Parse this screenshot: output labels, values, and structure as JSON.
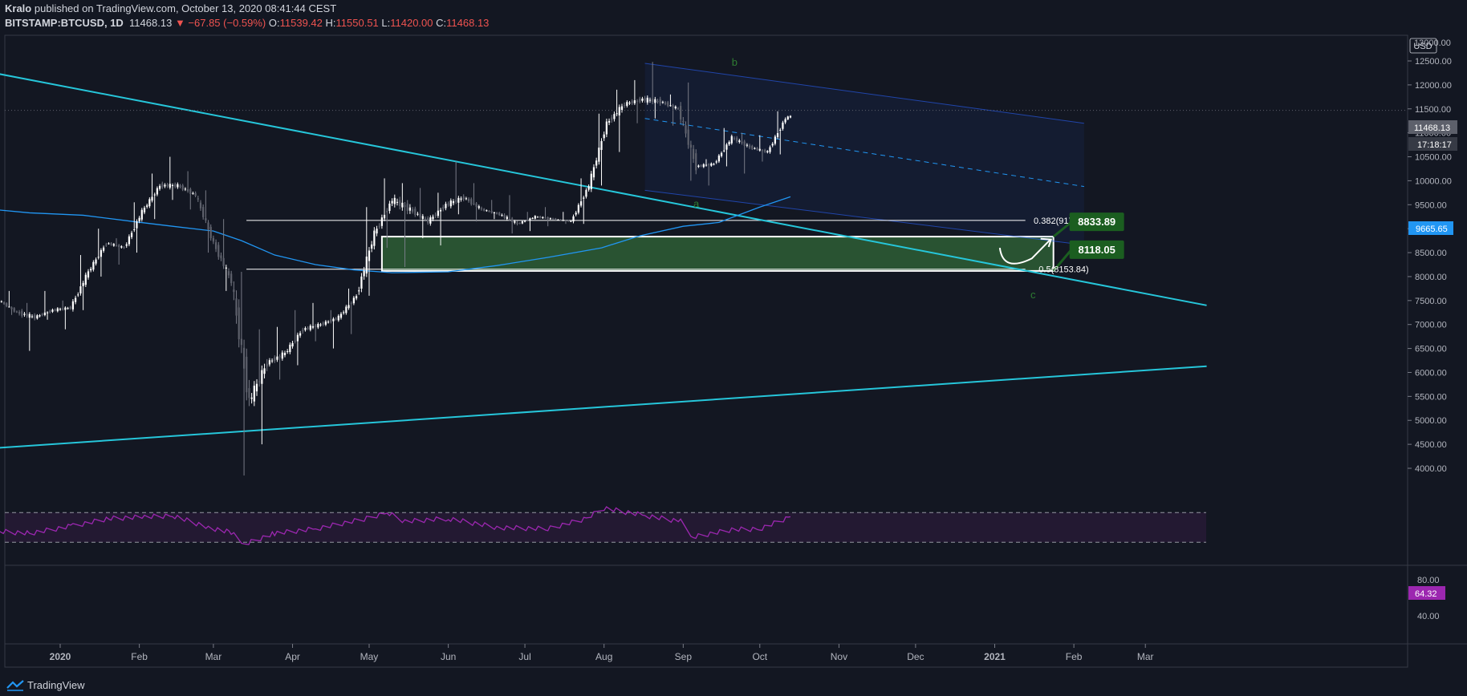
{
  "header": {
    "author": "Kralo",
    "published": "published on TradingView.com, October 13, 2020 08:41:44 CEST"
  },
  "symbol": {
    "name": "BITSTAMP:BTCUSD, 1D",
    "last": "11468.13",
    "change": "▼ −67.85 (−0.59%)",
    "o_label": "O:",
    "o": "11539.42",
    "h_label": "H:",
    "h": "11550.51",
    "l_label": "L:",
    "l": "11420.00",
    "c_label": "C:",
    "c": "11468.13"
  },
  "price_axis": {
    "currency": "USD",
    "ticks": [
      "12500.00",
      "12000.00",
      "11500.00",
      "11000.00",
      "10500.00",
      "10000.00",
      "9500.00",
      "9000.00",
      "8500.00",
      "8000.00",
      "7500.00",
      "7000.00",
      "6500.00",
      "6000.00",
      "5500.00",
      "5000.00",
      "4500.00",
      "4000.00"
    ],
    "top_partial": "13000.00",
    "last_price_tag": "11468.13",
    "countdown_tag": "17:18:17",
    "ma_tag": "9665.65"
  },
  "rsi_axis": {
    "ticks": [
      "80.00",
      "40.00"
    ],
    "value_tag": "64.32"
  },
  "time_axis": [
    "2020",
    "Feb",
    "Mar",
    "Apr",
    "May",
    "Jun",
    "Jul",
    "Aug",
    "Sep",
    "Oct",
    "Nov",
    "Dec",
    "2021",
    "Feb",
    "Mar"
  ],
  "annotations": {
    "fib_382": "0.382(9172.54)",
    "fib_5": "0.5(8153.84)",
    "target_high": "8833.89",
    "target_low": "8118.05",
    "wave_a": "a",
    "wave_b": "b",
    "wave_c": "c"
  },
  "footer": {
    "brand": "TradingView"
  },
  "colors": {
    "background": "#131722",
    "trendline": "#26c6da",
    "ma": "#2196f3",
    "rsi": "#9c27b0",
    "zone": "#2e5e35",
    "label_green": "#1b5e20",
    "down": "#ef5350"
  },
  "chart_data": {
    "type": "candlestick",
    "symbol": "BITSTAMP:BTCUSD",
    "interval": "1D",
    "x_range": [
      "2019-12-06",
      "2021-03-31"
    ],
    "ylim": [
      3700,
      13000
    ],
    "ohlc_weekly_approx": [
      {
        "x": "2019-12-09",
        "o": 7500,
        "h": 7700,
        "l": 7200,
        "c": 7250
      },
      {
        "x": "2019-12-16",
        "o": 7250,
        "h": 7450,
        "l": 6450,
        "c": 7150
      },
      {
        "x": "2019-12-23",
        "o": 7150,
        "h": 7700,
        "l": 7100,
        "c": 7300
      },
      {
        "x": "2019-12-30",
        "o": 7300,
        "h": 7500,
        "l": 6900,
        "c": 7350
      },
      {
        "x": "2020-01-06",
        "o": 7350,
        "h": 8450,
        "l": 7300,
        "c": 8100
      },
      {
        "x": "2020-01-13",
        "o": 8100,
        "h": 9000,
        "l": 8000,
        "c": 8700
      },
      {
        "x": "2020-01-20",
        "o": 8700,
        "h": 8800,
        "l": 8250,
        "c": 8600
      },
      {
        "x": "2020-01-27",
        "o": 8600,
        "h": 9550,
        "l": 8500,
        "c": 9350
      },
      {
        "x": "2020-02-03",
        "o": 9350,
        "h": 10150,
        "l": 9200,
        "c": 9900
      },
      {
        "x": "2020-02-10",
        "o": 9900,
        "h": 10500,
        "l": 9600,
        "c": 9900
      },
      {
        "x": "2020-02-17",
        "o": 9900,
        "h": 10200,
        "l": 9400,
        "c": 9700
      },
      {
        "x": "2020-02-24",
        "o": 9700,
        "h": 9800,
        "l": 8500,
        "c": 8700
      },
      {
        "x": "2020-03-02",
        "o": 8700,
        "h": 9200,
        "l": 7700,
        "c": 7900
      },
      {
        "x": "2020-03-09",
        "o": 7900,
        "h": 8100,
        "l": 3850,
        "c": 5400
      },
      {
        "x": "2020-03-16",
        "o": 5400,
        "h": 6900,
        "l": 4500,
        "c": 6200
      },
      {
        "x": "2020-03-23",
        "o": 6200,
        "h": 6950,
        "l": 5850,
        "c": 6400
      },
      {
        "x": "2020-03-30",
        "o": 6400,
        "h": 7300,
        "l": 6150,
        "c": 6900
      },
      {
        "x": "2020-04-06",
        "o": 6900,
        "h": 7450,
        "l": 6650,
        "c": 7000
      },
      {
        "x": "2020-04-13",
        "o": 7000,
        "h": 7300,
        "l": 6500,
        "c": 7150
      },
      {
        "x": "2020-04-20",
        "o": 7150,
        "h": 7750,
        "l": 6800,
        "c": 7600
      },
      {
        "x": "2020-04-27",
        "o": 7600,
        "h": 9450,
        "l": 7600,
        "c": 8900
      },
      {
        "x": "2020-05-04",
        "o": 8900,
        "h": 10050,
        "l": 8600,
        "c": 9600
      },
      {
        "x": "2020-05-11",
        "o": 9600,
        "h": 9950,
        "l": 8200,
        "c": 9400
      },
      {
        "x": "2020-05-18",
        "o": 9400,
        "h": 9850,
        "l": 8800,
        "c": 9150
      },
      {
        "x": "2020-05-25",
        "o": 9150,
        "h": 9750,
        "l": 8650,
        "c": 9500
      },
      {
        "x": "2020-06-01",
        "o": 9500,
        "h": 10400,
        "l": 9300,
        "c": 9650
      },
      {
        "x": "2020-06-08",
        "o": 9650,
        "h": 9950,
        "l": 9150,
        "c": 9400
      },
      {
        "x": "2020-06-15",
        "o": 9400,
        "h": 9600,
        "l": 9200,
        "c": 9300
      },
      {
        "x": "2020-06-22",
        "o": 9300,
        "h": 9700,
        "l": 8900,
        "c": 9100
      },
      {
        "x": "2020-06-29",
        "o": 9100,
        "h": 9350,
        "l": 8950,
        "c": 9250
      },
      {
        "x": "2020-07-06",
        "o": 9250,
        "h": 9450,
        "l": 9050,
        "c": 9200
      },
      {
        "x": "2020-07-13",
        "o": 9200,
        "h": 9350,
        "l": 9100,
        "c": 9150
      },
      {
        "x": "2020-07-20",
        "o": 9150,
        "h": 10050,
        "l": 9100,
        "c": 9900
      },
      {
        "x": "2020-07-27",
        "o": 9900,
        "h": 11400,
        "l": 9900,
        "c": 11200
      },
      {
        "x": "2020-08-03",
        "o": 11200,
        "h": 11900,
        "l": 10600,
        "c": 11600
      },
      {
        "x": "2020-08-10",
        "o": 11600,
        "h": 12100,
        "l": 11200,
        "c": 11700
      },
      {
        "x": "2020-08-17",
        "o": 11700,
        "h": 12480,
        "l": 11300,
        "c": 11650
      },
      {
        "x": "2020-08-24",
        "o": 11650,
        "h": 11800,
        "l": 11150,
        "c": 11500
      },
      {
        "x": "2020-08-31",
        "o": 11500,
        "h": 12050,
        "l": 10000,
        "c": 10300
      },
      {
        "x": "2020-09-07",
        "o": 10300,
        "h": 10450,
        "l": 9900,
        "c": 10350
      },
      {
        "x": "2020-09-14",
        "o": 10350,
        "h": 11100,
        "l": 10300,
        "c": 10900
      },
      {
        "x": "2020-09-21",
        "o": 10900,
        "h": 11000,
        "l": 10150,
        "c": 10700
      },
      {
        "x": "2020-09-28",
        "o": 10700,
        "h": 10950,
        "l": 10400,
        "c": 10600
      },
      {
        "x": "2020-10-05",
        "o": 10600,
        "h": 11450,
        "l": 10550,
        "c": 11300
      },
      {
        "x": "2020-10-12",
        "o": 11300,
        "h": 11700,
        "l": 11300,
        "c": 11468
      }
    ],
    "last": {
      "x": "2020-10-13",
      "o": 11539.42,
      "h": 11550.51,
      "l": 11420.0,
      "c": 11468.13
    },
    "moving_average": [
      {
        "x": "2019-12-06",
        "y": 9400
      },
      {
        "x": "2019-12-20",
        "y": 9330
      },
      {
        "x": "2020-01-10",
        "y": 9280
      },
      {
        "x": "2020-01-31",
        "y": 9140
      },
      {
        "x": "2020-02-14",
        "y": 9050
      },
      {
        "x": "2020-03-01",
        "y": 8950
      },
      {
        "x": "2020-03-12",
        "y": 8750
      },
      {
        "x": "2020-03-25",
        "y": 8450
      },
      {
        "x": "2020-04-10",
        "y": 8250
      },
      {
        "x": "2020-04-25",
        "y": 8140
      },
      {
        "x": "2020-05-10",
        "y": 8080
      },
      {
        "x": "2020-06-01",
        "y": 8100
      },
      {
        "x": "2020-06-20",
        "y": 8230
      },
      {
        "x": "2020-07-10",
        "y": 8400
      },
      {
        "x": "2020-07-31",
        "y": 8600
      },
      {
        "x": "2020-08-15",
        "y": 8850
      },
      {
        "x": "2020-09-01",
        "y": 9050
      },
      {
        "x": "2020-09-15",
        "y": 9130
      },
      {
        "x": "2020-10-01",
        "y": 9450
      },
      {
        "x": "2020-10-13",
        "y": 9665.65
      }
    ],
    "trendlines": [
      {
        "name": "descending",
        "points": [
          {
            "x": "2019-12-06",
            "y": 12250
          },
          {
            "x": "2021-03-25",
            "y": 7400
          }
        ]
      },
      {
        "name": "ascending",
        "points": [
          {
            "x": "2019-12-06",
            "y": 4420
          },
          {
            "x": "2021-03-25",
            "y": 6130
          }
        ]
      }
    ],
    "channel": {
      "upper": [
        {
          "x": "2020-08-17",
          "y": 12450
        },
        {
          "x": "2021-02-05",
          "y": 11200
        }
      ],
      "mid": [
        {
          "x": "2020-08-17",
          "y": 11300
        },
        {
          "x": "2021-02-05",
          "y": 9880
        }
      ],
      "lower": [
        {
          "x": "2020-08-17",
          "y": 9800
        },
        {
          "x": "2021-02-05",
          "y": 8660
        }
      ]
    },
    "fib_levels": [
      {
        "label": "0.382(9172.54)",
        "y": 9172.54,
        "from": "2020-03-02"
      },
      {
        "label": "0.5(8153.84)",
        "y": 8153.84,
        "from": "2020-03-02"
      }
    ],
    "zone": {
      "from": "2020-05-06",
      "to": "2021-01-24",
      "y1": 8118.05,
      "y2": 8833.89
    },
    "rsi": {
      "ylim": [
        25,
        90
      ],
      "levels": [
        70,
        30
      ],
      "last": 64.32,
      "points": [
        {
          "x": "2019-12-06",
          "y": 45
        },
        {
          "x": "2019-12-20",
          "y": 42
        },
        {
          "x": "2020-01-06",
          "y": 52
        },
        {
          "x": "2020-01-20",
          "y": 62
        },
        {
          "x": "2020-02-03",
          "y": 64
        },
        {
          "x": "2020-02-14",
          "y": 66
        },
        {
          "x": "2020-02-28",
          "y": 50
        },
        {
          "x": "2020-03-08",
          "y": 43
        },
        {
          "x": "2020-03-13",
          "y": 27
        },
        {
          "x": "2020-03-25",
          "y": 42
        },
        {
          "x": "2020-04-10",
          "y": 48
        },
        {
          "x": "2020-04-30",
          "y": 62
        },
        {
          "x": "2020-05-08",
          "y": 70
        },
        {
          "x": "2020-05-15",
          "y": 58
        },
        {
          "x": "2020-06-01",
          "y": 62
        },
        {
          "x": "2020-06-20",
          "y": 50
        },
        {
          "x": "2020-07-10",
          "y": 48
        },
        {
          "x": "2020-07-25",
          "y": 62
        },
        {
          "x": "2020-08-01",
          "y": 76
        },
        {
          "x": "2020-08-17",
          "y": 66
        },
        {
          "x": "2020-08-31",
          "y": 58
        },
        {
          "x": "2020-09-05",
          "y": 37
        },
        {
          "x": "2020-09-20",
          "y": 47
        },
        {
          "x": "2020-10-01",
          "y": 48
        },
        {
          "x": "2020-10-13",
          "y": 64.32
        }
      ]
    }
  }
}
